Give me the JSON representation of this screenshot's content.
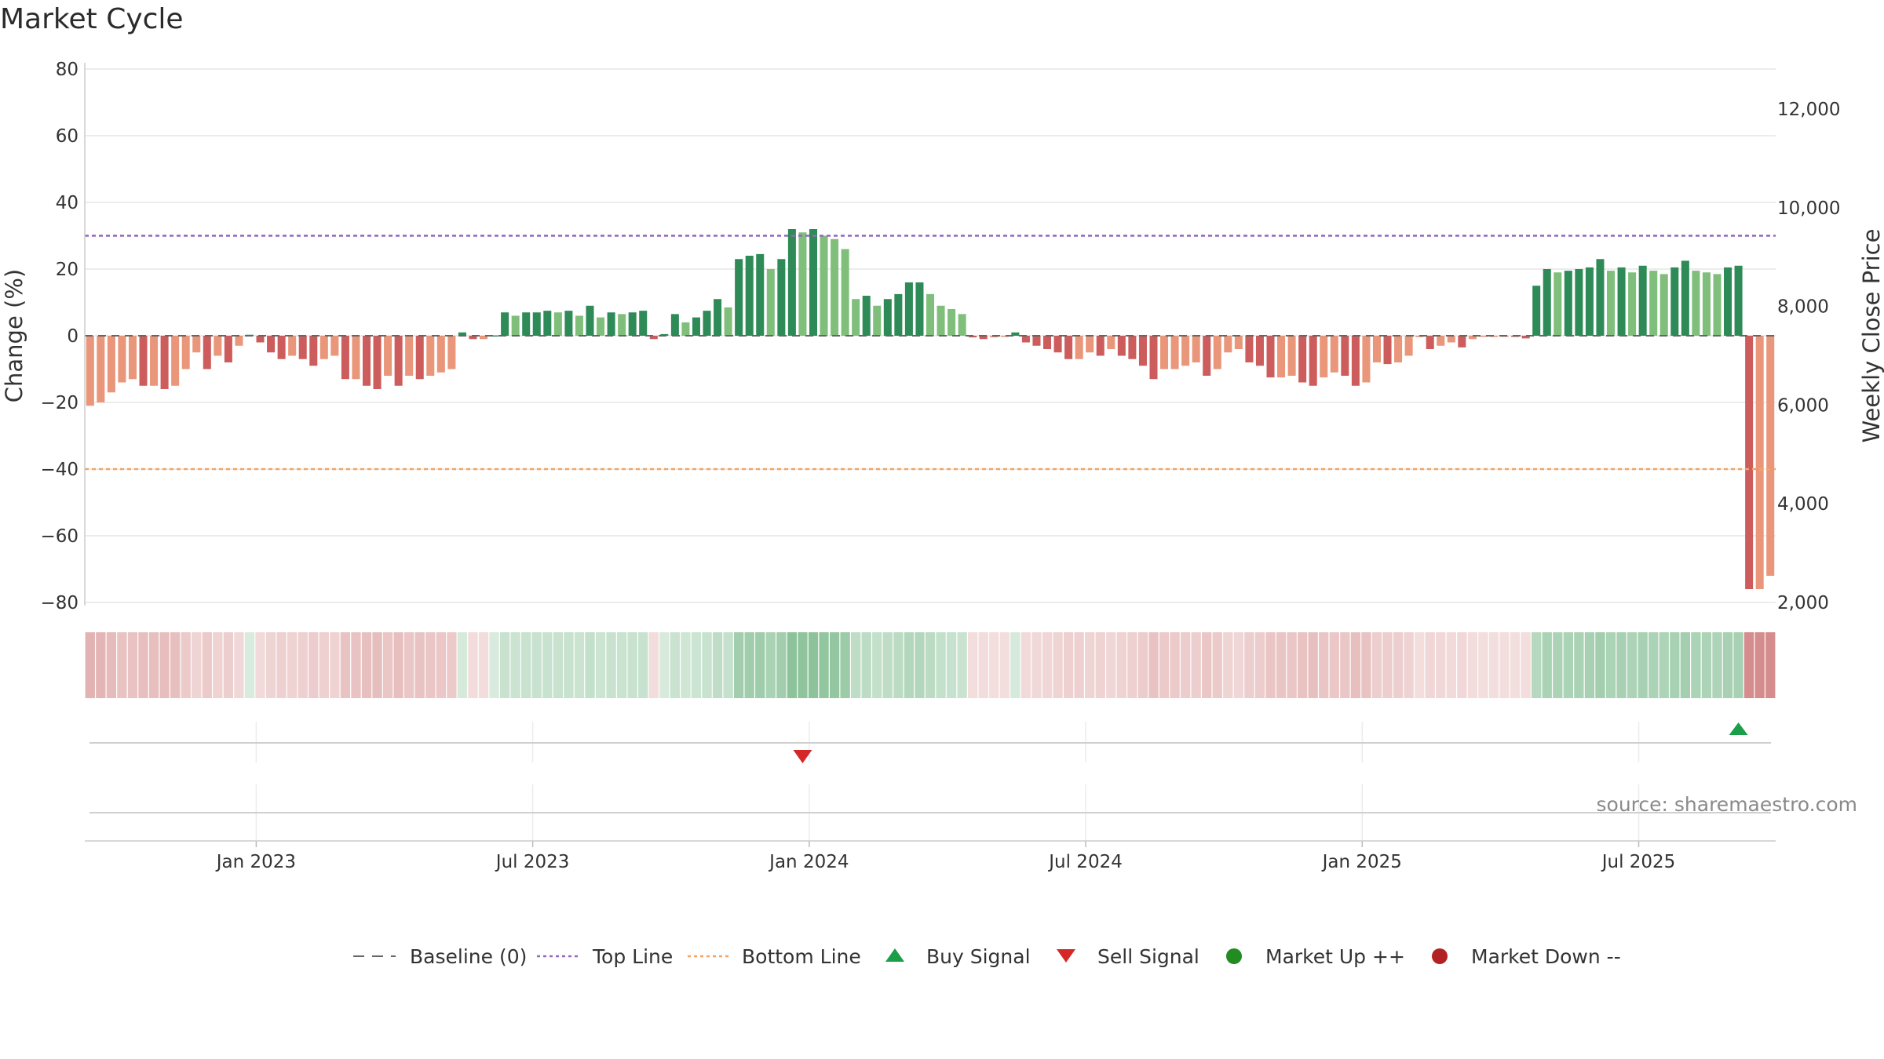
{
  "title": "Market Cycle",
  "chart_data": {
    "type": "bar",
    "title": "Market Cycle",
    "ylabel": "Change (%)",
    "y2label": "Weekly Close Price",
    "ylim": [
      -80,
      80
    ],
    "y2lim": [
      2000,
      12000
    ],
    "yticks": [
      "80",
      "60",
      "40",
      "20",
      "0",
      "−20",
      "−40",
      "−60",
      "−80"
    ],
    "y2ticks": [
      "12,000",
      "10,000",
      "8,000",
      "6,000",
      "4,000",
      "2,000"
    ],
    "xticks": [
      "Jan 2023",
      "Jul 2023",
      "Jan 2024",
      "Jul 2024",
      "Jan 2025",
      "Jul 2025"
    ],
    "top_line": 30,
    "bottom_line": -40,
    "baseline": 0,
    "grid": true,
    "legend_position": "bottom",
    "values": [
      -21,
      -20,
      -17,
      -14,
      -13,
      -15,
      -15,
      -16,
      -15,
      -10,
      -5,
      -10,
      -6,
      -8,
      -3,
      0.3,
      -2,
      -5,
      -7,
      -6,
      -7,
      -9,
      -7,
      -6,
      -13,
      -13,
      -15,
      -16,
      -12,
      -15,
      -12,
      -13,
      -12,
      -11,
      -10,
      1,
      -1,
      -1,
      0.1,
      7,
      6,
      7,
      7,
      7.5,
      7,
      7.5,
      6,
      9,
      5.5,
      7,
      6.5,
      7,
      7.5,
      -1,
      0.5,
      6.5,
      4,
      5.5,
      7.5,
      11,
      8.5,
      23,
      24,
      24.5,
      20,
      23,
      32,
      31,
      32,
      30,
      29,
      26,
      11,
      12,
      9,
      11,
      12.5,
      16,
      16,
      12.5,
      9,
      8,
      6.5,
      -0.5,
      -1,
      -0.5,
      -0.3,
      1,
      -2,
      -3,
      -4,
      -5,
      -7,
      -7,
      -5,
      -6,
      -4,
      -6,
      -7,
      -9,
      -13,
      -10,
      -10,
      -9,
      -8,
      -12,
      -10,
      -5,
      -4,
      -8,
      -9,
      -12.5,
      -12.5,
      -12,
      -14,
      -15,
      -12.5,
      -11,
      -12,
      -15,
      -14,
      -8,
      -8.5,
      -8,
      -6,
      -0.4,
      -4,
      -3,
      -2,
      -3.5,
      -1,
      -0.2,
      -0.1,
      -0.1,
      -0.2,
      -0.8,
      15,
      20,
      19,
      19.5,
      20,
      20.5,
      23,
      19.5,
      20.5,
      19,
      21,
      19.5,
      18.5,
      20.5,
      22.5,
      19.5,
      19,
      18.5,
      20.5,
      21,
      -76,
      -76,
      -72
    ],
    "series": [
      {
        "name": "Baseline (0)"
      },
      {
        "name": "Top Line"
      },
      {
        "name": "Bottom Line"
      },
      {
        "name": "Buy Signal"
      },
      {
        "name": "Sell Signal"
      },
      {
        "name": "Market Up ++"
      },
      {
        "name": "Market Down --"
      }
    ],
    "signals": [
      {
        "type": "sell",
        "index": 67
      },
      {
        "type": "buy",
        "index": 155
      }
    ]
  },
  "source": "source: sharemaestro.com",
  "colors": {
    "up_dark": "#2e8b57",
    "up_light": "#7fbf7b",
    "down_dark": "#cd5c5c",
    "down_light": "#e9967a",
    "top_line": "#9467bd",
    "bottom_line": "#f4a460",
    "buy": "#1a9e4a",
    "sell": "#d62728",
    "dot_up": "#228b22",
    "dot_down": "#b22222",
    "grid": "#e6e6e6"
  }
}
